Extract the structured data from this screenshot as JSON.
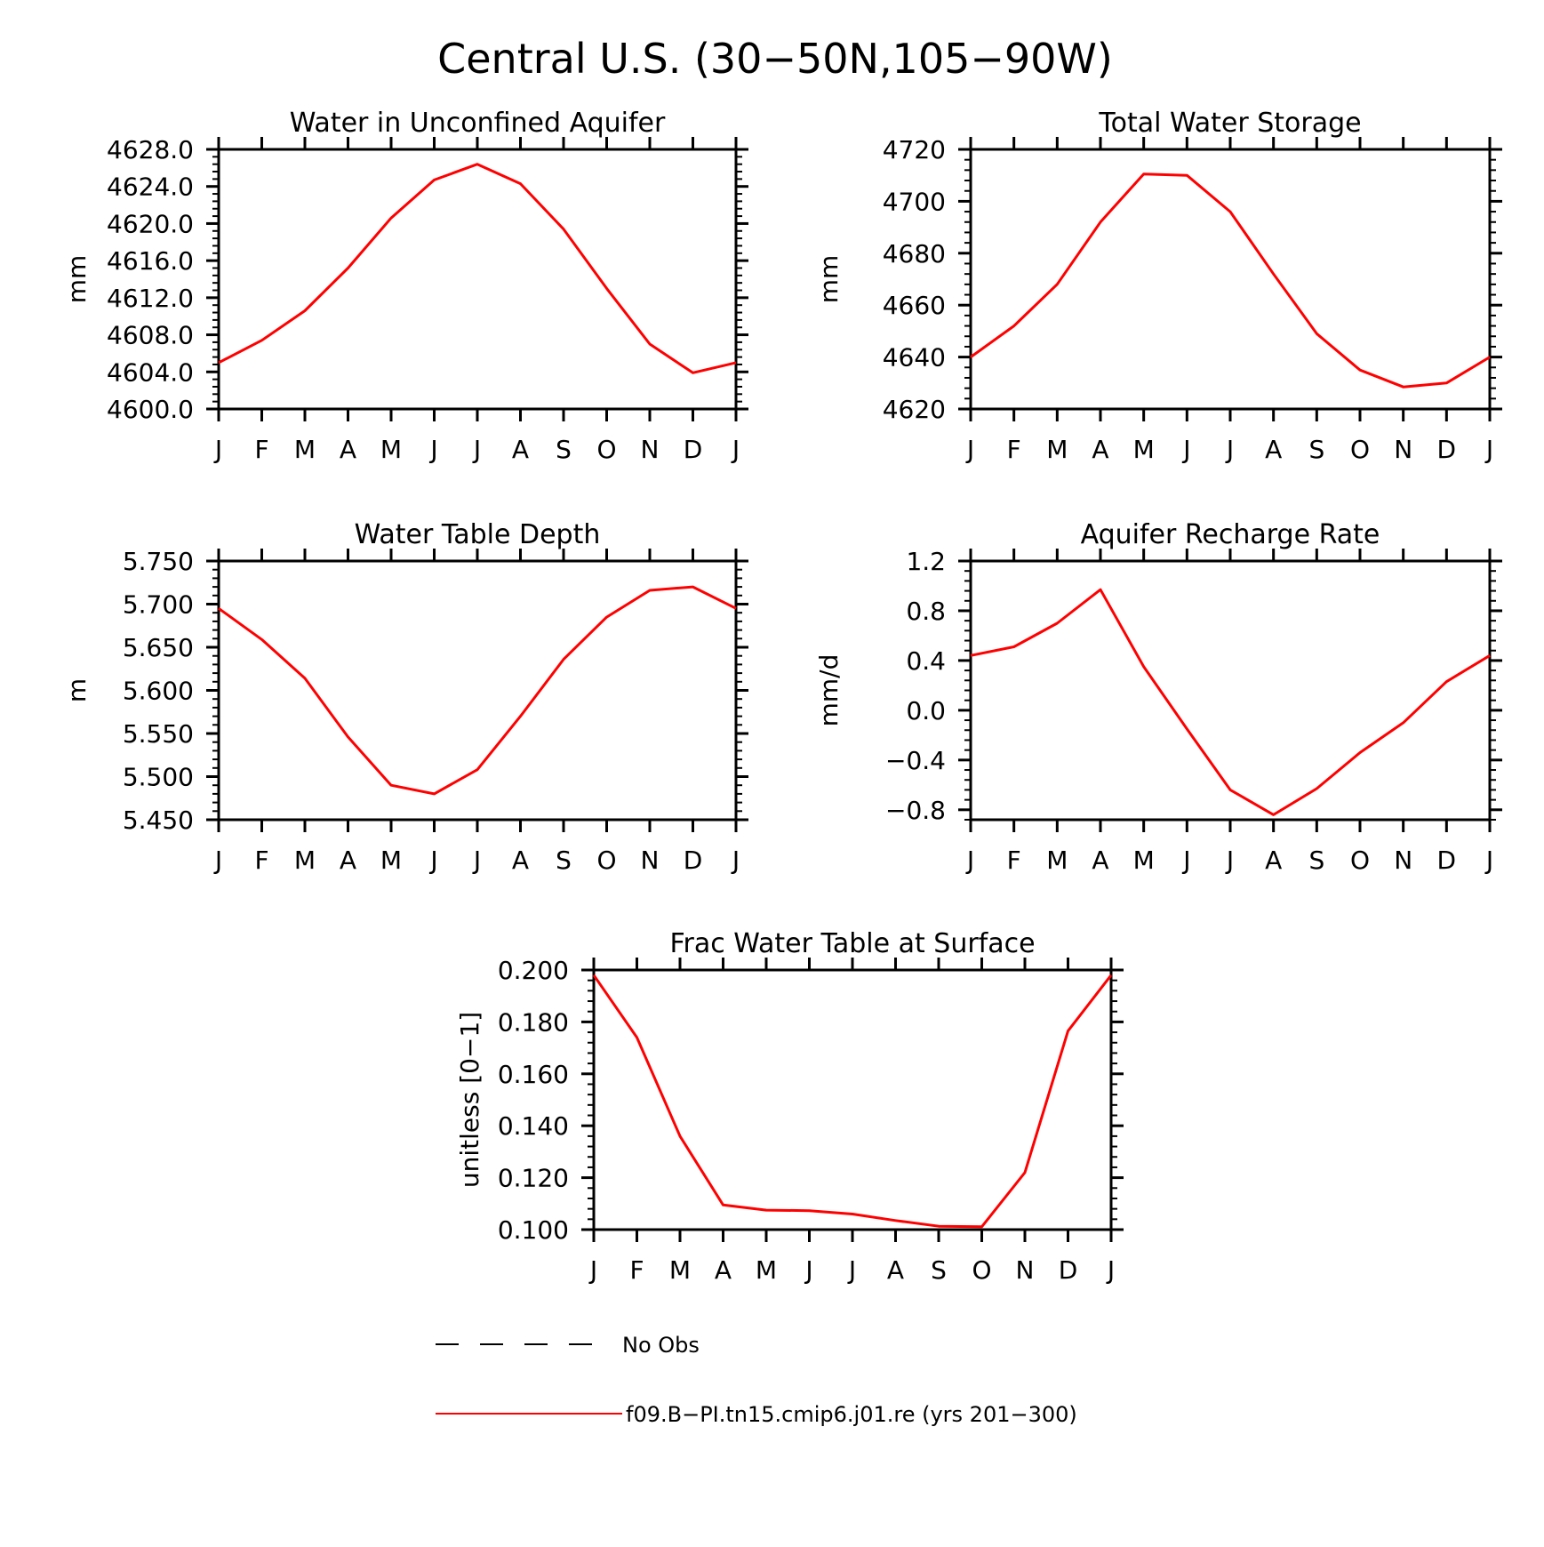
{
  "title": "Central U.S. (30−50N,105−90W)",
  "line_color": "#ff0000",
  "chart_data": [
    {
      "type": "line",
      "title": "Water in Unconfined Aquifer",
      "ylabel": "mm",
      "categories": [
        "J",
        "F",
        "M",
        "A",
        "M",
        "J",
        "J",
        "A",
        "S",
        "O",
        "N",
        "D",
        "J"
      ],
      "ylim": [
        4600,
        4628
      ],
      "yticks": [
        "4600.0",
        "4604.0",
        "4608.0",
        "4612.0",
        "4616.0",
        "4620.0",
        "4624.0",
        "4628.0"
      ],
      "ytick_values": [
        4600,
        4604,
        4608,
        4612,
        4616,
        4620,
        4624,
        4628
      ],
      "series": [
        {
          "values": [
            4605.0,
            4607.4,
            4610.6,
            4615.2,
            4620.6,
            4624.7,
            4626.4,
            4624.3,
            4619.4,
            4613.0,
            4607.0,
            4603.9,
            4605.0
          ]
        }
      ]
    },
    {
      "type": "line",
      "title": "Total Water Storage",
      "ylabel": "mm",
      "categories": [
        "J",
        "F",
        "M",
        "A",
        "M",
        "J",
        "J",
        "A",
        "S",
        "O",
        "N",
        "D",
        "J"
      ],
      "ylim": [
        4620,
        4720
      ],
      "yticks": [
        "4620",
        "4640",
        "4660",
        "4680",
        "4700",
        "4720"
      ],
      "ytick_values": [
        4620,
        4640,
        4660,
        4680,
        4700,
        4720
      ],
      "series": [
        {
          "values": [
            4640,
            4652,
            4668,
            4692,
            4710.5,
            4710,
            4696,
            4672,
            4649,
            4635,
            4628.5,
            4630,
            4640
          ]
        }
      ]
    },
    {
      "type": "line",
      "title": "Water Table Depth",
      "ylabel": "m",
      "categories": [
        "J",
        "F",
        "M",
        "A",
        "M",
        "J",
        "J",
        "A",
        "S",
        "O",
        "N",
        "D",
        "J"
      ],
      "ylim": [
        5.45,
        5.75
      ],
      "yticks": [
        "5.450",
        "5.500",
        "5.550",
        "5.600",
        "5.650",
        "5.700",
        "5.750"
      ],
      "ytick_values": [
        5.45,
        5.5,
        5.55,
        5.6,
        5.65,
        5.7,
        5.75
      ],
      "series": [
        {
          "values": [
            5.695,
            5.659,
            5.614,
            5.546,
            5.49,
            5.48,
            5.508,
            5.57,
            5.636,
            5.685,
            5.716,
            5.72,
            5.695
          ]
        }
      ]
    },
    {
      "type": "line",
      "title": "Aquifer Recharge Rate",
      "ylabel": "mm/d",
      "categories": [
        "J",
        "F",
        "M",
        "A",
        "M",
        "J",
        "J",
        "A",
        "S",
        "O",
        "N",
        "D",
        "J"
      ],
      "ylim": [
        -0.88,
        1.2
      ],
      "yticks": [
        "−0.8",
        "−0.4",
        "0.0",
        "0.4",
        "0.8",
        "1.2"
      ],
      "ytick_values": [
        -0.8,
        -0.4,
        0.0,
        0.4,
        0.8,
        1.2
      ],
      "series": [
        {
          "values": [
            0.44,
            0.51,
            0.7,
            0.97,
            0.35,
            -0.15,
            -0.64,
            -0.84,
            -0.63,
            -0.34,
            -0.1,
            0.23,
            0.44
          ]
        }
      ]
    },
    {
      "type": "line",
      "title": "Frac Water Table at Surface",
      "ylabel": "unitless [0−1]",
      "categories": [
        "J",
        "F",
        "M",
        "A",
        "M",
        "J",
        "J",
        "A",
        "S",
        "O",
        "N",
        "D",
        "J"
      ],
      "ylim": [
        0.1,
        0.2
      ],
      "yticks": [
        "0.100",
        "0.120",
        "0.140",
        "0.160",
        "0.180",
        "0.200"
      ],
      "ytick_values": [
        0.1,
        0.12,
        0.14,
        0.16,
        0.18,
        0.2
      ],
      "series": [
        {
          "values": [
            0.198,
            0.174,
            0.136,
            0.1095,
            0.1075,
            0.1073,
            0.106,
            0.1035,
            0.1013,
            0.1011,
            0.122,
            0.1765,
            0.198
          ]
        }
      ]
    }
  ],
  "legend": [
    {
      "label": "No Obs",
      "style": "dashed",
      "color": "#000000"
    },
    {
      "label": "f09.B−PI.tn15.cmip6.j01.re (yrs 201−300)",
      "style": "solid",
      "color": "#ff0000"
    }
  ]
}
